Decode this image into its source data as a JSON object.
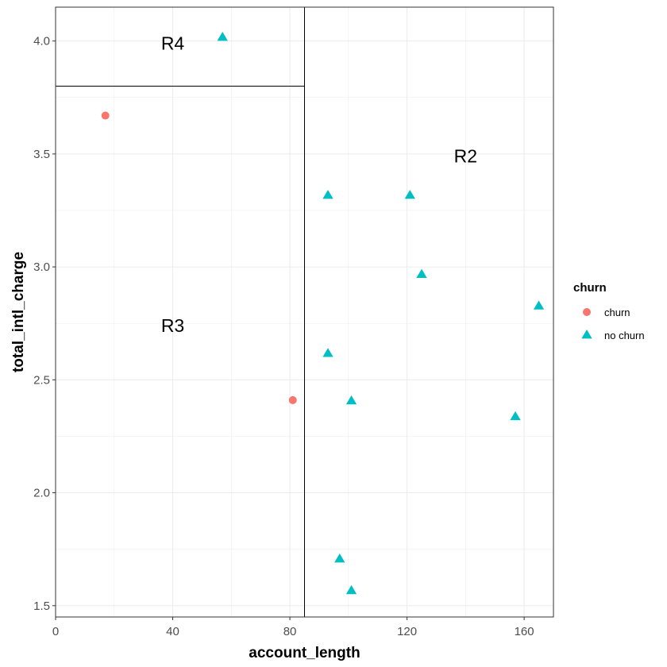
{
  "chart_data": {
    "type": "scatter",
    "xlabel": "account_length",
    "ylabel": "total_intl_charge",
    "xlim": [
      0,
      170
    ],
    "ylim": [
      1.45,
      4.15
    ],
    "x_ticks": [
      0,
      40,
      80,
      120,
      160
    ],
    "x_tick_labels": [
      "0",
      "40",
      "80",
      "120",
      "160"
    ],
    "y_ticks": [
      1.5,
      2.0,
      2.5,
      3.0,
      3.5,
      4.0
    ],
    "y_tick_labels": [
      "1.5",
      "2.0",
      "2.5",
      "3.0",
      "3.5",
      "4.0"
    ],
    "grid": true,
    "legend": {
      "title": "churn",
      "placement": "right",
      "entries": [
        {
          "label": "churn",
          "color": "#F8766D",
          "shape": "circle"
        },
        {
          "label": "no churn",
          "color": "#00BFC4",
          "shape": "triangle"
        }
      ]
    },
    "series": [
      {
        "name": "churn",
        "color": "#F8766D",
        "shape": "circle",
        "points": [
          {
            "x": 17,
            "y": 3.67
          },
          {
            "x": 81,
            "y": 2.41
          }
        ]
      },
      {
        "name": "no churn",
        "color": "#00BFC4",
        "shape": "triangle",
        "points": [
          {
            "x": 57,
            "y": 4.02
          },
          {
            "x": 93,
            "y": 3.32
          },
          {
            "x": 121,
            "y": 3.32
          },
          {
            "x": 125,
            "y": 2.97
          },
          {
            "x": 165,
            "y": 2.83
          },
          {
            "x": 93,
            "y": 2.62
          },
          {
            "x": 101,
            "y": 2.41
          },
          {
            "x": 157,
            "y": 2.34
          },
          {
            "x": 97,
            "y": 1.71
          },
          {
            "x": 101,
            "y": 1.57
          }
        ]
      }
    ],
    "splits": {
      "vertical_x": 85,
      "horizontal_y": 3.8
    },
    "regions": [
      {
        "label": "R4",
        "x": 40,
        "y": 3.99
      },
      {
        "label": "R2",
        "x": 140,
        "y": 3.49
      },
      {
        "label": "R3",
        "x": 40,
        "y": 2.74
      }
    ]
  }
}
